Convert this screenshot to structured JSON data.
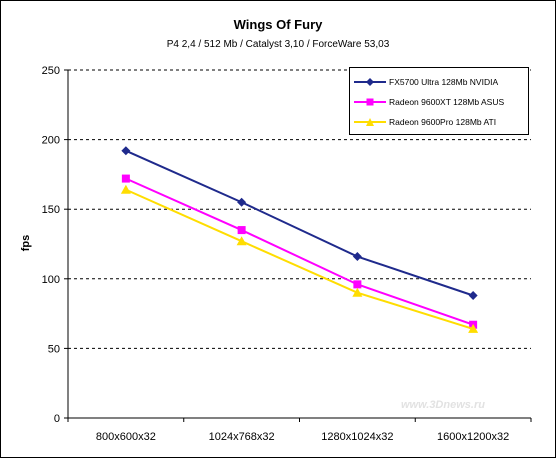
{
  "chart_data": {
    "type": "line",
    "title": "Wings Of Fury",
    "subtitle": "P4 2,4 / 512 Mb / Catalyst 3,10 / ForceWare 53,03",
    "xlabel": "",
    "ylabel": "fps",
    "categories": [
      "800x600x32",
      "1024x768x32",
      "1280x1024x32",
      "1600x1200x32"
    ],
    "ylim": [
      0,
      250
    ],
    "yticks": [
      0,
      50,
      100,
      150,
      200,
      250
    ],
    "grid": "horizontal dashed",
    "legend_position": "top-right",
    "series": [
      {
        "name": "FX5700 Ultra 128Mb NVIDIA",
        "color": "#1f2a8c",
        "marker": "diamond",
        "values": [
          192,
          155,
          116,
          88
        ]
      },
      {
        "name": "Radeon 9600XT 128Mb ASUS",
        "color": "#ff00ff",
        "marker": "square",
        "values": [
          172,
          135,
          96,
          67
        ]
      },
      {
        "name": "Radeon 9600Pro 128Mb ATI",
        "color": "#ffdd00",
        "marker": "triangle",
        "values": [
          164,
          127,
          90,
          64
        ]
      }
    ]
  },
  "watermark": "www.3Dnews.ru"
}
